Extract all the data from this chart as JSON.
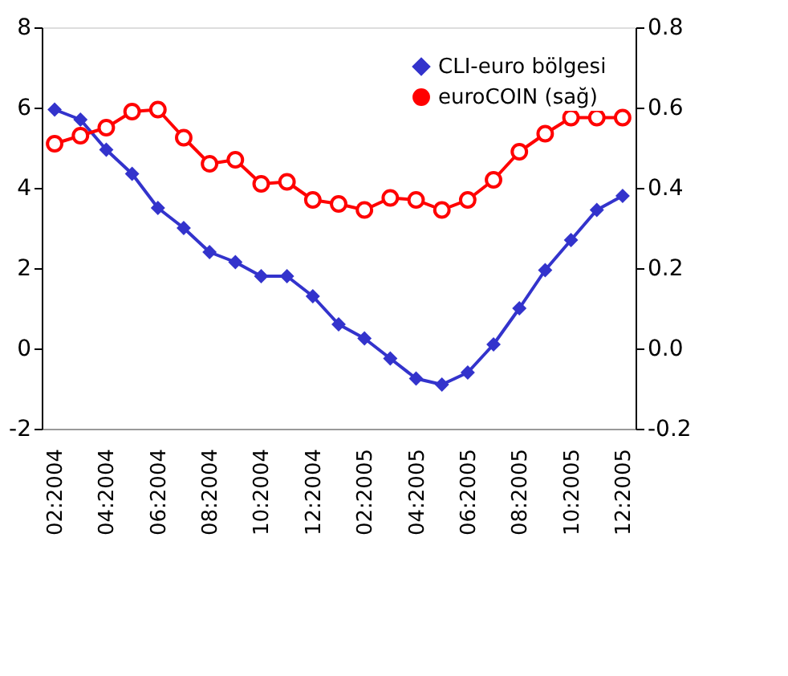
{
  "chart_data": {
    "type": "line",
    "categories": [
      "02:2004",
      null,
      "04:2004",
      null,
      "06:2004",
      null,
      "08:2004",
      null,
      "10:2004",
      null,
      "12:2004",
      null,
      "02:2005",
      null,
      "04:2005",
      null,
      "06:2005",
      null,
      "08:2005",
      null,
      "10:2005",
      null,
      "12:2005"
    ],
    "series": [
      {
        "name": "CLI-euro bölgesi",
        "color": "#3333cc",
        "marker": "diamond",
        "values": [
          5.95,
          5.7,
          4.95,
          4.35,
          3.5,
          3.0,
          2.4,
          2.15,
          1.8,
          1.8,
          1.3,
          0.6,
          0.25,
          -0.25,
          -0.75,
          -0.9,
          -0.6,
          0.1,
          1.0,
          1.95,
          2.7,
          3.45,
          3.8
        ]
      },
      {
        "name": "euroCOIN (sağ)",
        "color": "#ff0000",
        "marker": "circle",
        "axis": "y2",
        "values": [
          0.51,
          0.53,
          0.55,
          0.59,
          0.595,
          0.525,
          0.46,
          0.47,
          0.41,
          0.415,
          0.37,
          0.36,
          0.345,
          0.375,
          0.37,
          0.345,
          0.37,
          0.42,
          0.49,
          0.535,
          0.575,
          0.575,
          0.575
        ]
      }
    ],
    "ylim": [
      -2,
      8
    ],
    "yticks": [
      -2,
      0,
      2,
      4,
      6,
      8
    ],
    "y2lim": [
      -0.2,
      0.8
    ],
    "y2ticks": [
      {
        "value": -0.2,
        "label": "-0.2"
      },
      {
        "value": 0,
        "label": "0.0"
      },
      {
        "value": 0.2,
        "label": "0.2"
      },
      {
        "value": 0.4,
        "label": "0.4"
      },
      {
        "value": 0.6,
        "label": "0.6"
      },
      {
        "value": 0.8,
        "label": "0.8"
      }
    ],
    "legend": "top right",
    "grid": false
  }
}
